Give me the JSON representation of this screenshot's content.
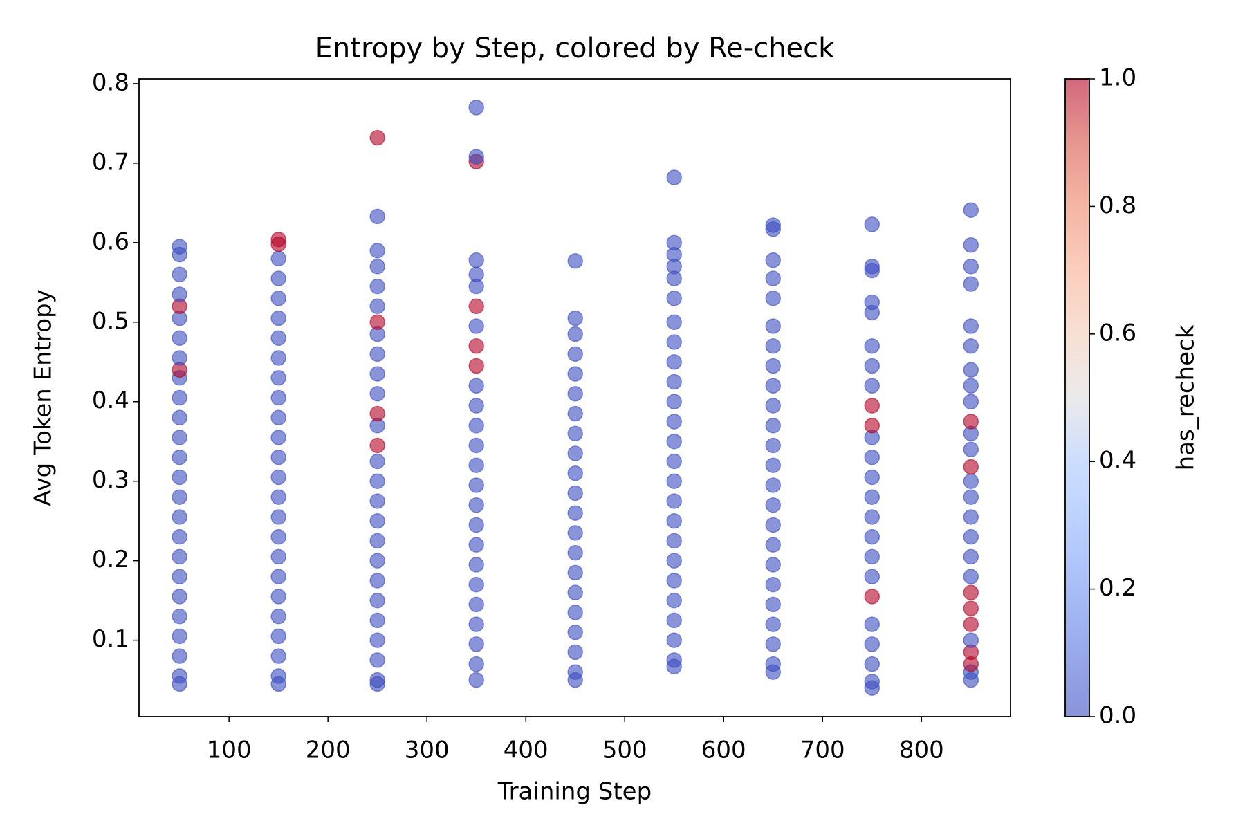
{
  "chart_data": {
    "type": "scatter",
    "title": "Entropy by Step, colored by Re-check",
    "x_label": "Training Step",
    "y_label": "Avg Token Entropy",
    "colorbar_label": "has_recheck",
    "colormap": "coolwarm",
    "alpha": 0.6,
    "xlim": [
      9,
      890
    ],
    "xticks": [
      100,
      200,
      300,
      400,
      500,
      600,
      700,
      800
    ],
    "ylim": [
      0.004,
      0.806
    ],
    "yticks": [
      0.1,
      0.2,
      0.3,
      0.4,
      0.5,
      0.6,
      0.7,
      0.8
    ],
    "clim": [
      0,
      1
    ],
    "cticks": [
      {
        "value": 0,
        "label": "0.0"
      },
      0.2,
      0.4,
      0.6,
      0.8,
      {
        "value": 1,
        "label": "1.0"
      }
    ],
    "x": [
      50,
      50,
      50,
      50,
      50,
      50,
      50,
      50,
      50,
      50,
      50,
      50,
      50,
      50,
      50,
      50,
      50,
      50,
      50,
      50,
      50,
      50,
      50,
      50,
      50,
      50,
      150,
      150,
      150,
      150,
      150,
      150,
      150,
      150,
      150,
      150,
      150,
      150,
      150,
      150,
      150,
      150,
      150,
      150,
      150,
      150,
      150,
      150,
      150,
      150,
      150,
      250,
      250,
      250,
      250,
      250,
      250,
      250,
      250,
      250,
      250,
      250,
      250,
      250,
      250,
      250,
      250,
      250,
      250,
      250,
      250,
      250,
      250,
      250,
      250,
      250,
      250,
      250,
      350,
      350,
      350,
      350,
      350,
      350,
      350,
      350,
      350,
      350,
      350,
      350,
      350,
      350,
      350,
      350,
      350,
      350,
      350,
      350,
      350,
      350,
      350,
      350,
      350,
      350,
      450,
      450,
      450,
      450,
      450,
      450,
      450,
      450,
      450,
      450,
      450,
      450,
      450,
      450,
      450,
      450,
      450,
      450,
      450,
      450,
      450,
      550,
      550,
      550,
      550,
      550,
      550,
      550,
      550,
      550,
      550,
      550,
      550,
      550,
      550,
      550,
      550,
      550,
      550,
      550,
      550,
      550,
      550,
      550,
      550,
      550,
      650,
      650,
      650,
      650,
      650,
      650,
      650,
      650,
      650,
      650,
      650,
      650,
      650,
      650,
      650,
      650,
      650,
      650,
      650,
      650,
      650,
      650,
      650,
      650,
      750,
      750,
      750,
      750,
      750,
      750,
      750,
      750,
      750,
      750,
      750,
      750,
      750,
      750,
      750,
      750,
      750,
      750,
      750,
      750,
      750,
      750,
      750,
      750,
      850,
      850,
      850,
      850,
      850,
      850,
      850,
      850,
      850,
      850,
      850,
      850,
      850,
      850,
      850,
      850,
      850,
      850,
      850,
      850,
      850,
      850,
      850,
      850,
      850,
      850,
      850
    ],
    "values": [
      0.045,
      0.055,
      0.08,
      0.105,
      0.13,
      0.155,
      0.18,
      0.205,
      0.23,
      0.255,
      0.28,
      0.305,
      0.33,
      0.355,
      0.38,
      0.405,
      0.43,
      0.44,
      0.455,
      0.48,
      0.505,
      0.52,
      0.535,
      0.56,
      0.585,
      0.595,
      0.045,
      0.055,
      0.08,
      0.105,
      0.13,
      0.155,
      0.18,
      0.205,
      0.23,
      0.255,
      0.28,
      0.305,
      0.33,
      0.355,
      0.38,
      0.405,
      0.43,
      0.455,
      0.48,
      0.505,
      0.53,
      0.555,
      0.58,
      0.598,
      0.604,
      0.045,
      0.05,
      0.075,
      0.1,
      0.125,
      0.15,
      0.175,
      0.2,
      0.225,
      0.25,
      0.275,
      0.3,
      0.325,
      0.345,
      0.37,
      0.385,
      0.41,
      0.435,
      0.46,
      0.485,
      0.5,
      0.52,
      0.545,
      0.57,
      0.59,
      0.633,
      0.732,
      0.05,
      0.07,
      0.095,
      0.12,
      0.145,
      0.17,
      0.195,
      0.22,
      0.245,
      0.27,
      0.295,
      0.32,
      0.345,
      0.37,
      0.395,
      0.42,
      0.445,
      0.47,
      0.495,
      0.52,
      0.545,
      0.56,
      0.578,
      0.702,
      0.708,
      0.77,
      0.05,
      0.06,
      0.085,
      0.11,
      0.135,
      0.16,
      0.185,
      0.21,
      0.235,
      0.26,
      0.285,
      0.31,
      0.335,
      0.36,
      0.385,
      0.41,
      0.435,
      0.46,
      0.485,
      0.505,
      0.577,
      0.067,
      0.075,
      0.1,
      0.125,
      0.15,
      0.175,
      0.2,
      0.225,
      0.25,
      0.275,
      0.3,
      0.325,
      0.35,
      0.375,
      0.4,
      0.425,
      0.45,
      0.475,
      0.5,
      0.53,
      0.555,
      0.57,
      0.585,
      0.6,
      0.682,
      0.06,
      0.07,
      0.095,
      0.12,
      0.145,
      0.17,
      0.195,
      0.22,
      0.245,
      0.27,
      0.295,
      0.32,
      0.345,
      0.37,
      0.395,
      0.42,
      0.445,
      0.47,
      0.495,
      0.53,
      0.555,
      0.578,
      0.617,
      0.622,
      0.04,
      0.048,
      0.07,
      0.095,
      0.12,
      0.155,
      0.18,
      0.205,
      0.23,
      0.255,
      0.28,
      0.305,
      0.33,
      0.355,
      0.37,
      0.395,
      0.42,
      0.445,
      0.47,
      0.512,
      0.525,
      0.565,
      0.57,
      0.623,
      0.05,
      0.06,
      0.07,
      0.085,
      0.1,
      0.12,
      0.14,
      0.16,
      0.18,
      0.205,
      0.23,
      0.255,
      0.28,
      0.3,
      0.318,
      0.34,
      0.36,
      0.375,
      0.4,
      0.42,
      0.44,
      0.47,
      0.495,
      0.548,
      0.57,
      0.597,
      0.641
    ],
    "color_values": [
      0,
      0,
      0,
      0,
      0,
      0,
      0,
      0,
      0,
      0,
      0,
      0,
      0,
      0,
      0,
      0,
      0,
      1,
      0,
      0,
      0,
      1,
      0,
      0,
      0,
      0,
      0,
      0,
      0,
      0,
      0,
      0,
      0,
      0,
      0,
      0,
      0,
      0,
      0,
      0,
      0,
      0,
      0,
      0,
      0,
      0,
      0,
      0,
      0,
      1,
      1,
      0,
      0,
      0,
      0,
      0,
      0,
      0,
      0,
      0,
      0,
      0,
      0,
      0,
      1,
      0,
      1,
      0,
      0,
      0,
      0,
      1,
      0,
      0,
      0,
      0,
      0,
      1,
      0,
      0,
      0,
      0,
      0,
      0,
      0,
      0,
      0,
      0,
      0,
      0,
      0,
      0,
      0,
      0,
      1,
      1,
      0,
      1,
      0,
      0,
      0,
      1,
      0,
      0,
      0,
      0,
      0,
      0,
      0,
      0,
      0,
      0,
      0,
      0,
      0,
      0,
      0,
      0,
      0,
      0,
      0,
      0,
      0,
      0,
      0,
      0,
      0,
      0,
      0,
      0,
      0,
      0,
      0,
      0,
      0,
      0,
      0,
      0,
      0,
      0,
      0,
      0,
      0,
      0,
      0,
      0,
      0,
      0,
      0,
      0,
      0,
      0,
      0,
      0,
      0,
      0,
      0,
      0,
      0,
      0,
      0,
      0,
      0,
      0,
      0,
      0,
      0,
      0,
      0,
      0,
      0,
      0,
      0,
      0,
      0,
      0,
      0,
      0,
      0,
      1,
      0,
      0,
      0,
      0,
      0,
      0,
      0,
      0,
      1,
      1,
      0,
      0,
      0,
      0,
      0,
      0,
      0,
      0,
      0,
      0,
      1,
      1,
      0,
      1,
      1,
      1,
      0,
      0,
      0,
      0,
      0,
      0,
      1,
      0,
      0,
      1,
      0,
      0,
      0,
      0,
      0,
      0,
      0,
      0,
      0
    ]
  }
}
